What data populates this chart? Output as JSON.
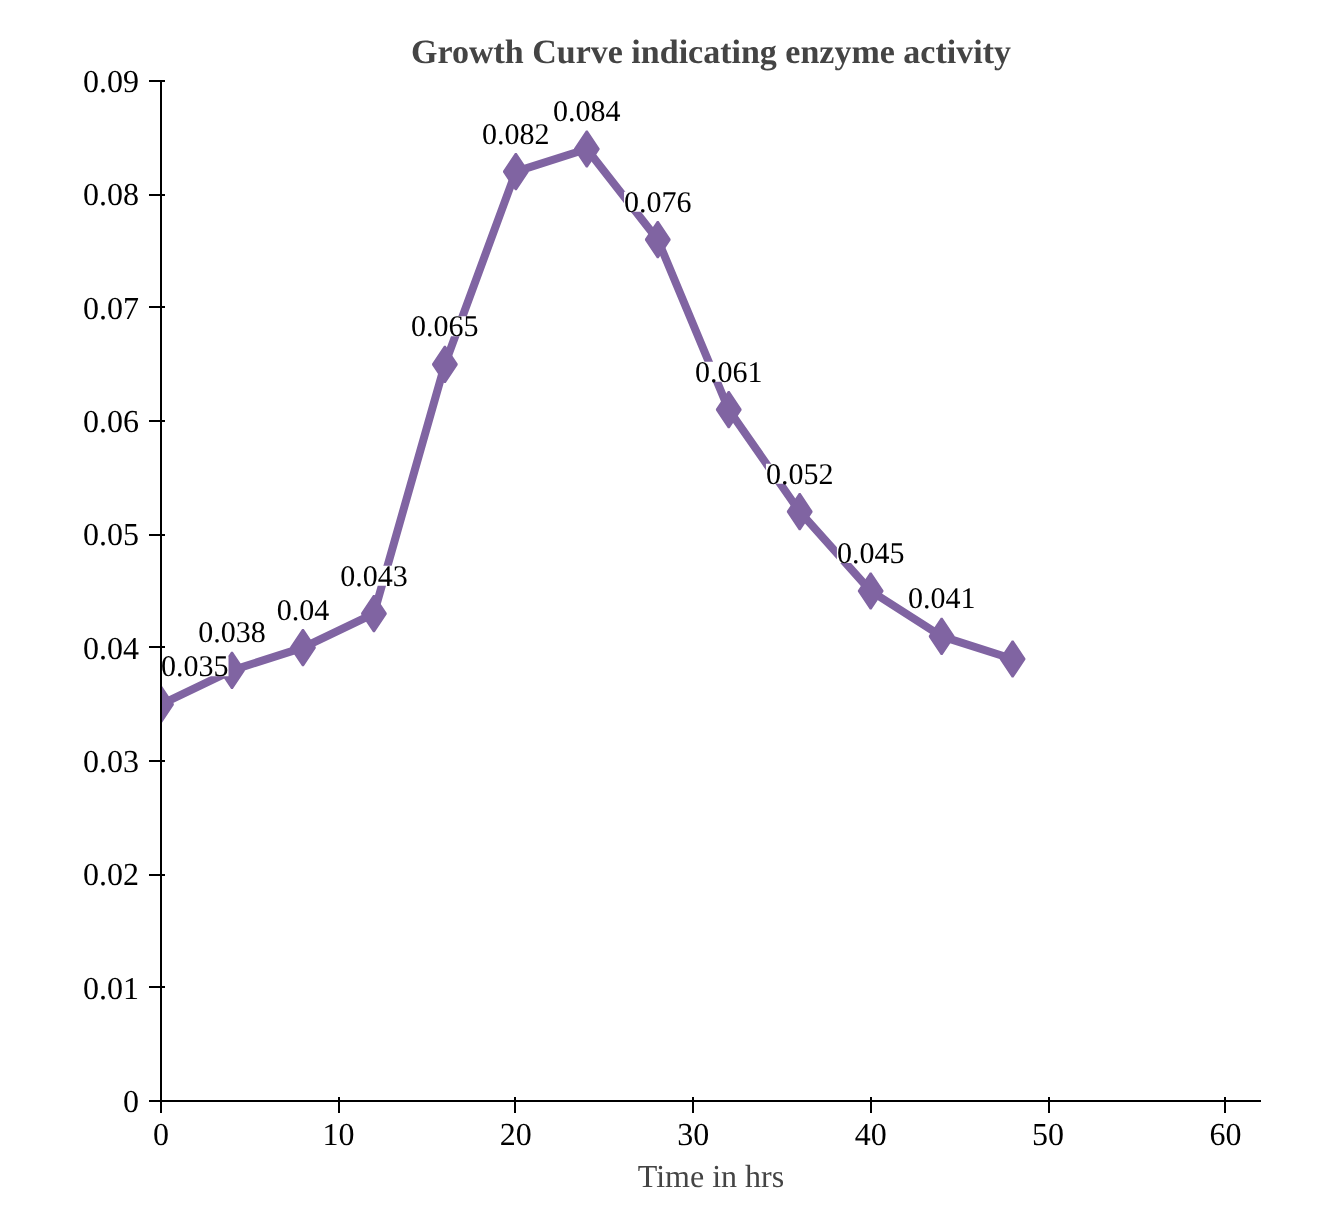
{
  "chart_data": {
    "type": "line",
    "title": "Growth Curve indicating enzyme activity",
    "xlabel": "Time in hrs",
    "x": [
      0,
      4,
      8,
      12,
      16,
      20,
      24,
      28,
      32,
      36,
      40,
      44,
      48
    ],
    "series": [
      {
        "color": "#8064a2",
        "values": [
          0.035,
          0.038,
          0.04,
          0.043,
          0.065,
          0.082,
          0.084,
          0.076,
          0.061,
          0.052,
          0.045,
          0.041,
          0.039
        ],
        "value_labels": [
          "0.035",
          "0.038",
          "0.04",
          "0.043",
          "0.065",
          "0.082",
          "0.084",
          "0.076",
          "0.061",
          "0.052",
          "0.045",
          "0.041",
          null
        ]
      }
    ],
    "xlim": [
      0,
      62
    ],
    "xticks": [
      0,
      10,
      20,
      30,
      40,
      50,
      60
    ],
    "ylim": [
      0,
      0.09
    ],
    "yticks": [
      0,
      0.01,
      0.02,
      0.03,
      0.04,
      0.05,
      0.06,
      0.07,
      0.08,
      0.09
    ],
    "marker": "diamond",
    "line_style": "solid",
    "grid": false
  }
}
